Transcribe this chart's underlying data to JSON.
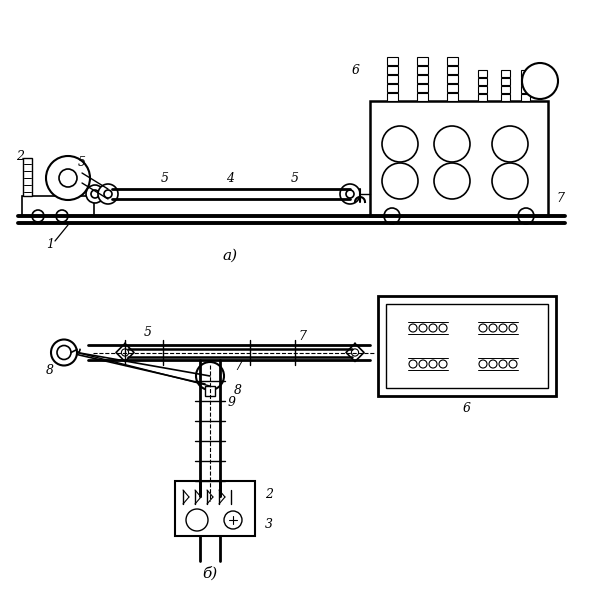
{
  "bg_color": "#ffffff",
  "line_color": "#000000",
  "fig_width": 5.93,
  "fig_height": 5.91,
  "lc": "#000000"
}
